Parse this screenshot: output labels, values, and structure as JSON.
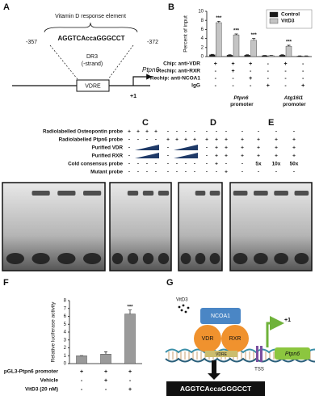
{
  "panel_labels": [
    "A",
    "B",
    "C",
    "D",
    "E",
    "F",
    "G"
  ],
  "panel_a": {
    "title": "Vitamin D response element",
    "start": "-357",
    "end": "-372",
    "sequence": "AGGTCAccaGGGCCT",
    "motif": "DR3",
    "strand": "(-strand)",
    "element": "VDRE",
    "gene": "Ptpn6",
    "tss": "+1"
  },
  "chart_data": [
    {
      "type": "bar",
      "y_label": "Percent of input",
      "ylim": [
        0,
        10
      ],
      "yticks": [
        0,
        2,
        4,
        6,
        8,
        10
      ],
      "legend": "top-right",
      "series": [
        {
          "name": "Control",
          "color": "#1a1a1a",
          "values": [
            0.4,
            0.3,
            0.3,
            0.2,
            0.3,
            0.1
          ],
          "errors": [
            0.1,
            0.1,
            0.1,
            0.05,
            0.1,
            0.05
          ]
        },
        {
          "name": "VitD3",
          "color": "#c4c4c4",
          "values": [
            7.5,
            4.8,
            3.6,
            0.2,
            2.3,
            0.1
          ],
          "errors": [
            0.3,
            0.2,
            0.4,
            0.05,
            0.2,
            0.05
          ],
          "significance": [
            "***",
            "***",
            "***",
            null,
            "***",
            null
          ]
        }
      ],
      "conditions": [
        {
          "label": "Chip: anti-VDR",
          "signs": [
            "+",
            "+",
            "+",
            "-",
            "+",
            "-"
          ]
        },
        {
          "label": "Rechip: anti-RXR",
          "signs": [
            "-",
            "+",
            "-",
            "-",
            "-",
            "-"
          ]
        },
        {
          "label": "Rechip: anti-NCOA1",
          "signs": [
            "-",
            "-",
            "+",
            "-",
            "-",
            "-"
          ]
        },
        {
          "label": "IgG",
          "signs": [
            "-",
            "-",
            "-",
            "+",
            "-",
            "+"
          ]
        }
      ],
      "groups": [
        "Ptpn6 promoter",
        "Atg16l1 promoter"
      ]
    },
    {
      "type": "bar",
      "y_label": "Relative luciferase activity",
      "ylim": [
        0,
        8
      ],
      "yticks": [
        0,
        1,
        2,
        3,
        4,
        5,
        6,
        7,
        8
      ],
      "color": "#9a9a9a",
      "values": [
        1,
        1.2,
        6.3
      ],
      "errors": [
        0.02,
        0.3,
        0.5
      ],
      "significance": [
        null,
        null,
        "***"
      ],
      "conditions": [
        {
          "label": "pGL3-Ptpn6 promoter",
          "signs": [
            "+",
            "+",
            "+"
          ]
        },
        {
          "label": "Vehicle",
          "signs": [
            "-",
            "+",
            "-"
          ]
        },
        {
          "label": "VitD3 (20 nM)",
          "signs": [
            "-",
            "-",
            "+"
          ]
        }
      ]
    }
  ],
  "panel_cde": {
    "rows": [
      {
        "label": "Radiolabelled Osteopontin probe",
        "signs": [
          "+",
          "+",
          "+",
          "+",
          "-",
          "-",
          "-",
          "-",
          "-",
          "-",
          "-",
          "-",
          "-",
          "-",
          "-"
        ]
      },
      {
        "label": "Radiolabelled Ptpn6 probe",
        "signs": [
          "-",
          "-",
          "-",
          "-",
          "+",
          "+",
          "+",
          "+",
          "+",
          "+",
          "+",
          "+",
          "+",
          "+",
          "+"
        ]
      },
      {
        "label": "Purified VDR",
        "signs": [
          "-",
          null,
          null,
          null,
          "-",
          null,
          null,
          null,
          "-",
          "+",
          "+",
          "+",
          "+",
          "+",
          "+"
        ]
      },
      {
        "label": "Purified RXR",
        "signs": [
          "-",
          null,
          null,
          null,
          "-",
          null,
          null,
          null,
          "-",
          "+",
          "+",
          "+",
          "+",
          "+",
          "+"
        ]
      },
      {
        "label": "Cold consensus probe",
        "signs": [
          "-",
          "-",
          "-",
          "-",
          "-",
          "-",
          "-",
          "-",
          "-",
          "+",
          "-",
          "-",
          "5x",
          "10x",
          "50x"
        ]
      },
      {
        "label": "Mutant probe",
        "signs": [
          "-",
          "-",
          "-",
          "-",
          "-",
          "-",
          "-",
          "-",
          "-",
          "-",
          "+",
          "-",
          "-",
          "-",
          "-"
        ]
      }
    ]
  },
  "panel_g": {
    "ligand": "VitD3",
    "coactivator": "NCOA1",
    "receptor_1": "VDR",
    "receptor_2": "RXR",
    "element": "VDRE",
    "tss_mark": "+1",
    "tss": "TSS",
    "gene": "Ptpn6",
    "sequence": "AGGTCAccaGGGCCT"
  }
}
